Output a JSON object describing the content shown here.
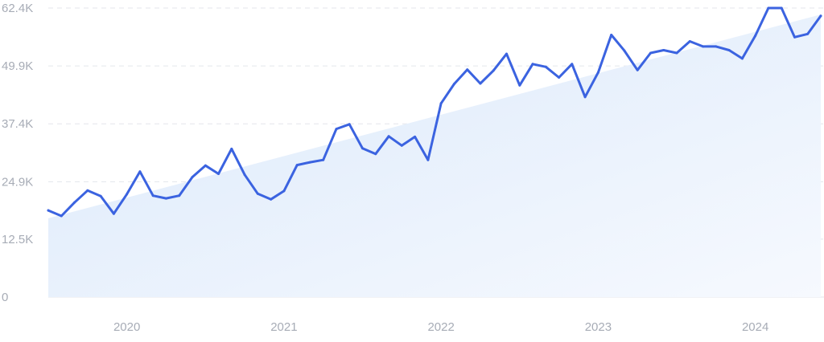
{
  "chart_data": {
    "type": "line",
    "title": "",
    "xlabel": "",
    "ylabel": "",
    "ylim": [
      0,
      62400
    ],
    "y_ticks": [
      {
        "value": 0,
        "label": "0"
      },
      {
        "value": 12500,
        "label": "12.5K"
      },
      {
        "value": 24900,
        "label": "24.9K"
      },
      {
        "value": 37400,
        "label": "37.4K"
      },
      {
        "value": 49900,
        "label": "49.9K"
      },
      {
        "value": 62400,
        "label": "62.4K"
      }
    ],
    "x_range": [
      "2019-07",
      "2024-06"
    ],
    "x_ticks": [
      {
        "date": "2020-01",
        "label": "2020"
      },
      {
        "date": "2021-01",
        "label": "2021"
      },
      {
        "date": "2022-01",
        "label": "2022"
      },
      {
        "date": "2023-01",
        "label": "2023"
      },
      {
        "date": "2024-01",
        "label": "2024"
      }
    ],
    "grid": true,
    "trend": {
      "start": {
        "date": "2019-07",
        "value": 17000
      },
      "end": {
        "date": "2024-06",
        "value": 61000
      }
    },
    "colors": {
      "line": "#3b63e0",
      "trend_fill": "#e1edfb",
      "grid": "#e3e6eb",
      "tick": "#a7acb6"
    },
    "series": [
      {
        "name": "",
        "points": [
          {
            "x": "2019-07",
            "y": 18700
          },
          {
            "x": "2019-08",
            "y": 17500
          },
          {
            "x": "2019-09",
            "y": 20400
          },
          {
            "x": "2019-10",
            "y": 23000
          },
          {
            "x": "2019-11",
            "y": 21800
          },
          {
            "x": "2019-12",
            "y": 18000
          },
          {
            "x": "2020-01",
            "y": 22200
          },
          {
            "x": "2020-02",
            "y": 27100
          },
          {
            "x": "2020-03",
            "y": 21900
          },
          {
            "x": "2020-04",
            "y": 21300
          },
          {
            "x": "2020-05",
            "y": 21900
          },
          {
            "x": "2020-06",
            "y": 25900
          },
          {
            "x": "2020-07",
            "y": 28400
          },
          {
            "x": "2020-08",
            "y": 26600
          },
          {
            "x": "2020-09",
            "y": 32000
          },
          {
            "x": "2020-10",
            "y": 26400
          },
          {
            "x": "2020-11",
            "y": 22300
          },
          {
            "x": "2020-12",
            "y": 21100
          },
          {
            "x": "2021-01",
            "y": 22900
          },
          {
            "x": "2021-02",
            "y": 28500
          },
          {
            "x": "2021-03",
            "y": 29100
          },
          {
            "x": "2021-04",
            "y": 29600
          },
          {
            "x": "2021-05",
            "y": 36300
          },
          {
            "x": "2021-06",
            "y": 37300
          },
          {
            "x": "2021-07",
            "y": 32100
          },
          {
            "x": "2021-08",
            "y": 30900
          },
          {
            "x": "2021-09",
            "y": 34700
          },
          {
            "x": "2021-10",
            "y": 32700
          },
          {
            "x": "2021-11",
            "y": 34600
          },
          {
            "x": "2021-12",
            "y": 29600
          },
          {
            "x": "2022-01",
            "y": 41800
          },
          {
            "x": "2022-02",
            "y": 46000
          },
          {
            "x": "2022-03",
            "y": 49100
          },
          {
            "x": "2022-04",
            "y": 46100
          },
          {
            "x": "2022-05",
            "y": 48900
          },
          {
            "x": "2022-06",
            "y": 52500
          },
          {
            "x": "2022-07",
            "y": 45700
          },
          {
            "x": "2022-08",
            "y": 50300
          },
          {
            "x": "2022-09",
            "y": 49700
          },
          {
            "x": "2022-10",
            "y": 47400
          },
          {
            "x": "2022-11",
            "y": 50300
          },
          {
            "x": "2022-12",
            "y": 43200
          },
          {
            "x": "2023-01",
            "y": 48500
          },
          {
            "x": "2023-02",
            "y": 56600
          },
          {
            "x": "2023-03",
            "y": 53200
          },
          {
            "x": "2023-04",
            "y": 49000
          },
          {
            "x": "2023-05",
            "y": 52700
          },
          {
            "x": "2023-06",
            "y": 53300
          },
          {
            "x": "2023-07",
            "y": 52700
          },
          {
            "x": "2023-08",
            "y": 55200
          },
          {
            "x": "2023-09",
            "y": 54100
          },
          {
            "x": "2023-10",
            "y": 54100
          },
          {
            "x": "2023-11",
            "y": 53300
          },
          {
            "x": "2023-12",
            "y": 51500
          },
          {
            "x": "2024-01",
            "y": 56400
          },
          {
            "x": "2024-02",
            "y": 62400
          },
          {
            "x": "2024-03",
            "y": 62400
          },
          {
            "x": "2024-04",
            "y": 56100
          },
          {
            "x": "2024-05",
            "y": 56800
          },
          {
            "x": "2024-06",
            "y": 60700
          }
        ]
      }
    ]
  }
}
